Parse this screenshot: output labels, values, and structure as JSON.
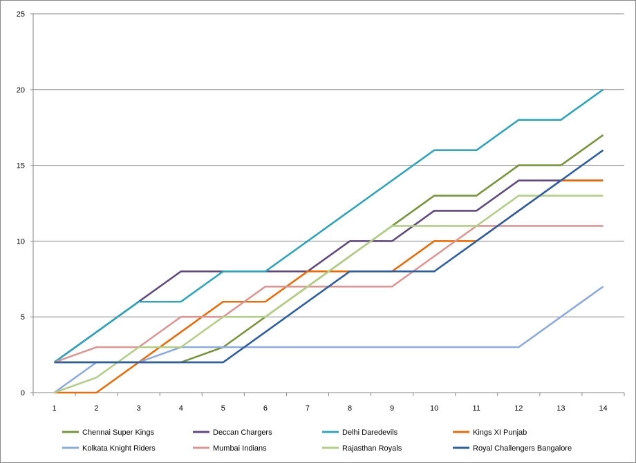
{
  "chart_data": {
    "type": "line",
    "title": "",
    "xlabel": "",
    "ylabel": "",
    "x": [
      1,
      2,
      3,
      4,
      5,
      6,
      7,
      8,
      9,
      10,
      11,
      12,
      13,
      14
    ],
    "xlim": [
      1,
      14
    ],
    "ylim": [
      0,
      25
    ],
    "yticks": [
      0,
      5,
      10,
      15,
      20,
      25
    ],
    "grid": "horizontal",
    "legend": "bottom",
    "series": [
      {
        "name": "Chennai Super Kings",
        "color": "#77933c",
        "values": [
          2,
          2,
          2,
          2,
          3,
          5,
          7,
          9,
          11,
          13,
          13,
          15,
          15,
          17
        ]
      },
      {
        "name": "Deccan Chargers",
        "color": "#604a7b",
        "values": [
          2,
          4,
          6,
          8,
          8,
          8,
          8,
          10,
          10,
          12,
          12,
          14,
          14,
          14
        ]
      },
      {
        "name": "Delhi Daredevils",
        "color": "#31a3b8",
        "values": [
          2,
          4,
          6,
          6,
          8,
          8,
          10,
          12,
          14,
          16,
          16,
          18,
          18,
          20
        ]
      },
      {
        "name": "Kings XI Punjab",
        "color": "#e46c0a",
        "values": [
          0,
          0,
          2,
          4,
          6,
          6,
          8,
          8,
          8,
          10,
          10,
          12,
          14,
          14
        ]
      },
      {
        "name": "Kolkata Knight Riders",
        "color": "#8eaadb",
        "values": [
          0,
          2,
          2,
          3,
          3,
          3,
          3,
          3,
          3,
          3,
          3,
          3,
          5,
          7
        ]
      },
      {
        "name": "Mumbai Indians",
        "color": "#da9694",
        "values": [
          2,
          3,
          3,
          5,
          5,
          7,
          7,
          7,
          7,
          9,
          11,
          11,
          11,
          11
        ]
      },
      {
        "name": "Rajasthan Royals",
        "color": "#b3cd89",
        "values": [
          0,
          1,
          3,
          3,
          5,
          5,
          7,
          9,
          11,
          11,
          11,
          13,
          13,
          13
        ]
      },
      {
        "name": "Royal Challengers Bangalore",
        "color": "#2f5e9e",
        "values": [
          2,
          2,
          2,
          2,
          2,
          4,
          6,
          8,
          8,
          8,
          10,
          12,
          14,
          16
        ]
      }
    ]
  }
}
